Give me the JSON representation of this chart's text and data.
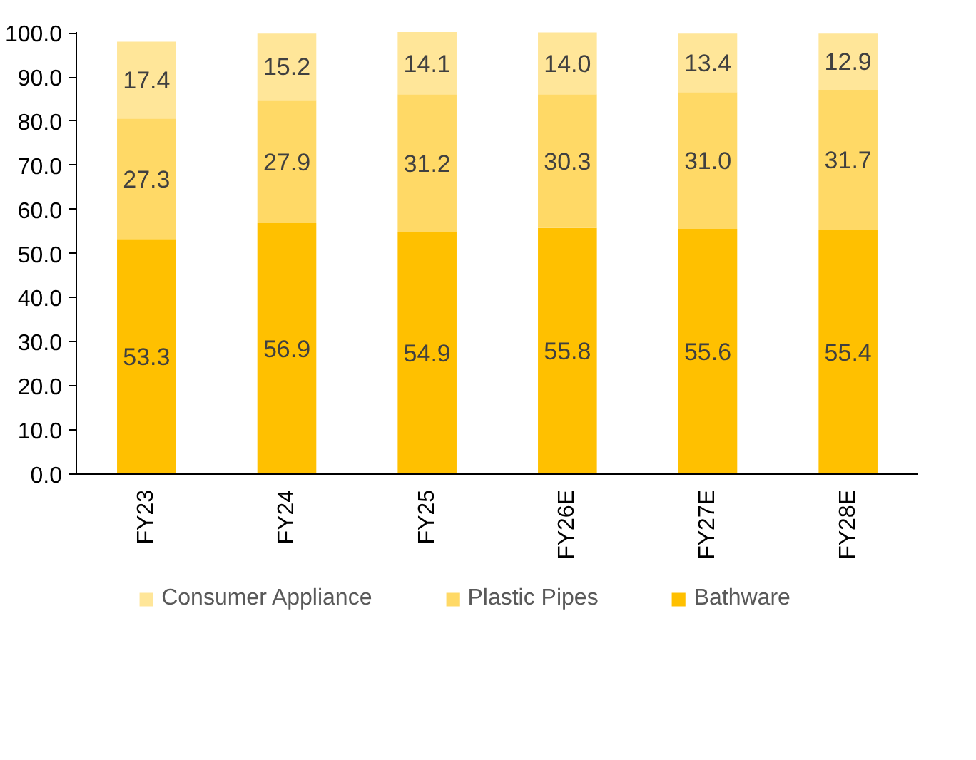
{
  "chart_data": {
    "type": "bar",
    "stacked": true,
    "categories": [
      "FY23",
      "FY24",
      "FY25",
      "FY26E",
      "FY27E",
      "FY28E"
    ],
    "series": [
      {
        "name": "Bathware",
        "color": "#ffc000",
        "values": [
          53.3,
          56.9,
          54.9,
          55.8,
          55.6,
          55.4
        ],
        "value_labels": [
          "53.3",
          "56.9",
          "54.9",
          "55.8",
          "55.6",
          "55.4"
        ]
      },
      {
        "name": "Plastic Pipes",
        "color": "#ffd966",
        "values": [
          27.3,
          27.9,
          31.2,
          30.3,
          31.0,
          31.7
        ],
        "value_labels": [
          "27.3",
          "27.9",
          "31.2",
          "30.3",
          "31.0",
          "31.7"
        ]
      },
      {
        "name": "Consumer Appliance",
        "color": "#ffe699",
        "values": [
          17.4,
          15.2,
          14.1,
          14.0,
          13.4,
          12.9
        ],
        "value_labels": [
          "17.4",
          "15.2",
          "14.1",
          "14.0",
          "13.4",
          "12.9"
        ]
      }
    ],
    "ylim": [
      0,
      100.2
    ],
    "yticks": [
      {
        "value": 0,
        "label": "0.0"
      },
      {
        "value": 10,
        "label": "10.0"
      },
      {
        "value": 20,
        "label": "20.0"
      },
      {
        "value": 30,
        "label": "30.0"
      },
      {
        "value": 40,
        "label": "40.0"
      },
      {
        "value": 50,
        "label": "50.0"
      },
      {
        "value": 60,
        "label": "60.0"
      },
      {
        "value": 70,
        "label": "70.0"
      },
      {
        "value": 80,
        "label": "80.0"
      },
      {
        "value": 90,
        "label": "90.0"
      },
      {
        "value": 100,
        "label": "100.0"
      }
    ],
    "legend": "bottom",
    "grid": false
  }
}
